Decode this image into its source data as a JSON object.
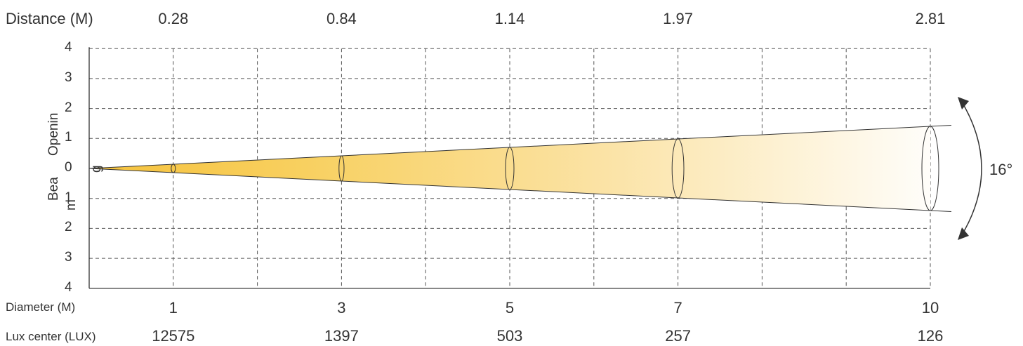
{
  "chart_data": {
    "type": "beam-angle",
    "beam_angle_label": "16°",
    "distance_title": "Distance (M)",
    "diameter_title": "Diameter (M)",
    "lux_title": "Lux center (LUX)",
    "y_title_parts": [
      "Bea",
      "m",
      "Openin",
      "g"
    ],
    "y_tick_labels": [
      "4",
      "3",
      "2",
      "1",
      "0",
      "1",
      "2",
      "3",
      "4"
    ],
    "points": [
      {
        "distance": "1",
        "diameter": "0.28",
        "lux": "12575"
      },
      {
        "distance": "3",
        "diameter": "0.84",
        "lux": "1397"
      },
      {
        "distance": "5",
        "diameter": "1.14",
        "lux": "503"
      },
      {
        "distance": "7",
        "diameter": "1.97",
        "lux": "257"
      },
      {
        "distance": "10",
        "diameter": "2.81",
        "lux": "126"
      }
    ],
    "x_range": [
      0,
      10
    ],
    "y_range": [
      -4,
      4
    ],
    "grid": true,
    "colors": {
      "beam_start": "#f7c948",
      "beam_end": "#ffffff",
      "grid": "#555555",
      "outline": "#333333"
    }
  }
}
